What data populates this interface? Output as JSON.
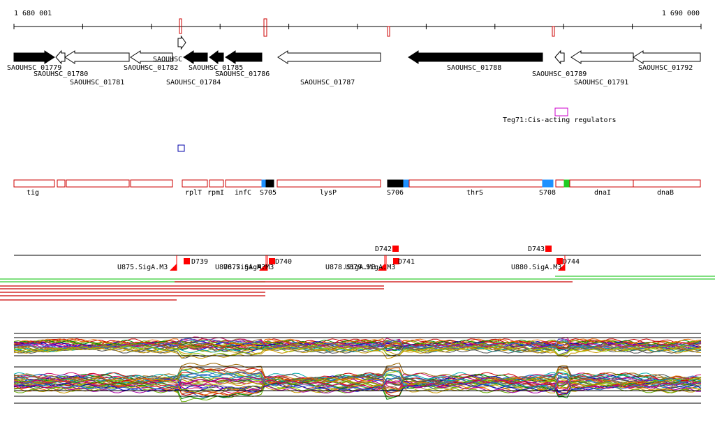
{
  "ruler": {
    "start": "1 680 001",
    "end": "1 690 000"
  },
  "genes": [
    {
      "label": "SAOUHSC_01779"
    },
    {
      "label": "SAOUHSC_01780"
    },
    {
      "label": "SAOUHSC_01781"
    },
    {
      "label": "SAOUHSC_01782"
    },
    {
      "label": "SAOUHSC"
    },
    {
      "label": "SAOUHSC_01784"
    },
    {
      "label": "SAOUHSC_01785"
    },
    {
      "label": "SAOUHSC_01786"
    },
    {
      "label": "SAOUHSC_01787"
    },
    {
      "label": "SAOUHSC_01788"
    },
    {
      "label": "SAOUHSC_01789"
    },
    {
      "label": "SAOUHSC_01791"
    },
    {
      "label": "SAOUHSC_01792"
    }
  ],
  "regulator": {
    "label": "Teg71:Cis-acting regulators"
  },
  "features": [
    "tig",
    "rplT",
    "rpmI",
    "infC",
    "S705",
    "lysP",
    "S706",
    "thrS",
    "S708",
    "dnaI",
    "dnaB"
  ],
  "markers": [
    "D739",
    "D740",
    "D741",
    "D742",
    "D743",
    "D744"
  ],
  "promoters": [
    "U875.SigA.M3",
    "U876.SigA.M3",
    "U877.SigA.M3",
    "U878.SigA.M3",
    "U879.SigA.M3",
    "U880.SigA.M3"
  ]
}
